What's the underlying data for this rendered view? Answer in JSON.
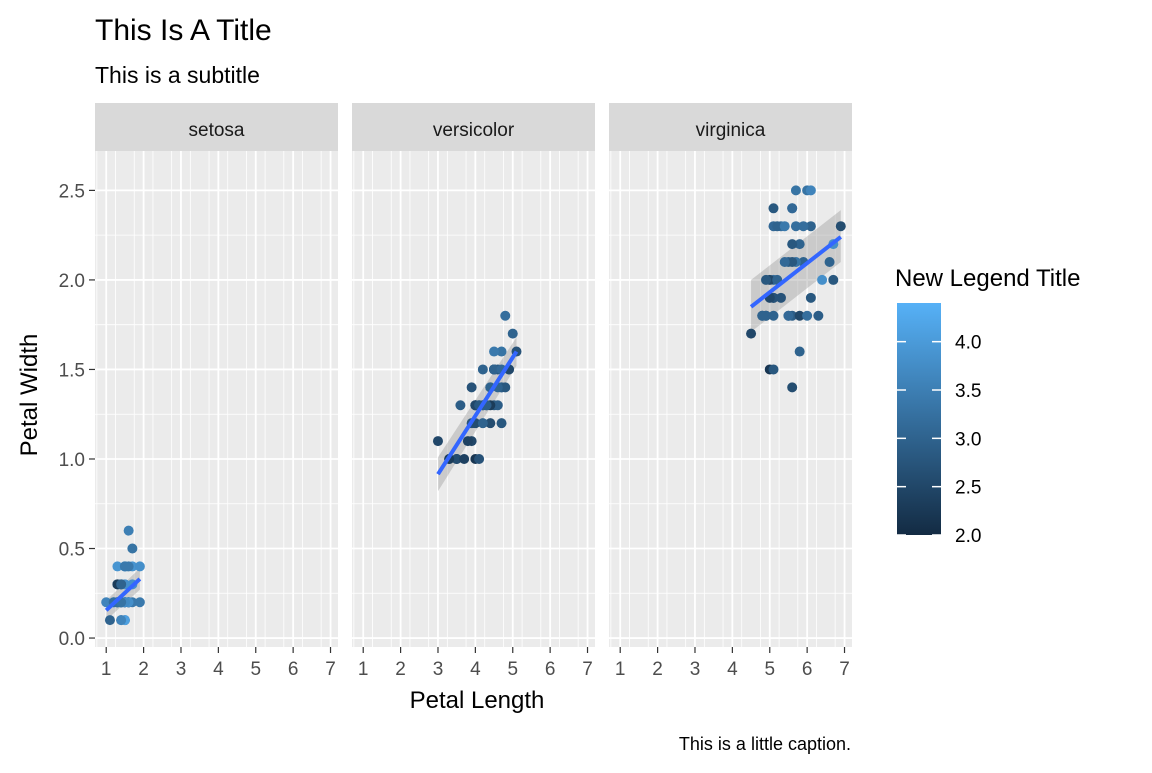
{
  "chart_data": {
    "type": "scatter",
    "title": "This Is A Title",
    "subtitle": "This is a subtitle",
    "caption": "This is a little caption.",
    "xlabel": "Petal Length",
    "ylabel": "Petal Width",
    "xlim": [
      0.7,
      7.2
    ],
    "ylim": [
      -0.05,
      2.72
    ],
    "x_ticks": [
      1,
      2,
      3,
      4,
      5,
      6,
      7
    ],
    "y_ticks": [
      0.0,
      0.5,
      1.0,
      1.5,
      2.0,
      2.5
    ],
    "y_tick_labels": [
      "0.0",
      "0.5",
      "1.0",
      "1.5",
      "2.0",
      "2.5"
    ],
    "grid": true,
    "legend": {
      "title": "New Legend Title",
      "placement": "right",
      "min": 2.0,
      "max": 4.4,
      "low_color": "#132B43",
      "high_color": "#56B1F7",
      "ticks": [
        2.0,
        2.5,
        3.0,
        3.5,
        4.0
      ],
      "tick_labels": [
        "2.0",
        "2.5",
        "3.0",
        "3.5",
        "4.0"
      ]
    },
    "smooth_color": "#3366FF",
    "panels": [
      {
        "name": "setosa",
        "fit": {
          "x": [
            1.0,
            1.9
          ],
          "y": [
            0.155,
            0.33
          ],
          "se_lo": [
            0.1,
            0.27
          ],
          "se_hi": [
            0.21,
            0.39
          ]
        },
        "points": [
          [
            1.4,
            0.2,
            3.5
          ],
          [
            1.4,
            0.2,
            3.0
          ],
          [
            1.3,
            0.2,
            3.2
          ],
          [
            1.5,
            0.2,
            3.1
          ],
          [
            1.4,
            0.2,
            3.6
          ],
          [
            1.7,
            0.4,
            3.9
          ],
          [
            1.4,
            0.3,
            3.4
          ],
          [
            1.5,
            0.2,
            3.4
          ],
          [
            1.4,
            0.2,
            2.9
          ],
          [
            1.5,
            0.1,
            3.1
          ],
          [
            1.5,
            0.2,
            3.7
          ],
          [
            1.6,
            0.2,
            3.4
          ],
          [
            1.4,
            0.1,
            3.0
          ],
          [
            1.1,
            0.1,
            3.0
          ],
          [
            1.2,
            0.2,
            4.0
          ],
          [
            1.5,
            0.4,
            4.4
          ],
          [
            1.3,
            0.4,
            3.9
          ],
          [
            1.4,
            0.3,
            3.5
          ],
          [
            1.7,
            0.3,
            3.8
          ],
          [
            1.5,
            0.3,
            3.8
          ],
          [
            1.7,
            0.2,
            3.4
          ],
          [
            1.5,
            0.4,
            3.7
          ],
          [
            1.0,
            0.2,
            3.6
          ],
          [
            1.7,
            0.5,
            3.3
          ],
          [
            1.9,
            0.2,
            3.4
          ],
          [
            1.6,
            0.2,
            3.0
          ],
          [
            1.6,
            0.4,
            3.4
          ],
          [
            1.5,
            0.2,
            3.5
          ],
          [
            1.4,
            0.2,
            3.4
          ],
          [
            1.6,
            0.2,
            3.2
          ],
          [
            1.6,
            0.2,
            3.1
          ],
          [
            1.5,
            0.4,
            3.4
          ],
          [
            1.5,
            0.1,
            4.1
          ],
          [
            1.4,
            0.2,
            4.2
          ],
          [
            1.5,
            0.2,
            3.1
          ],
          [
            1.2,
            0.2,
            3.2
          ],
          [
            1.3,
            0.2,
            3.5
          ],
          [
            1.4,
            0.1,
            3.6
          ],
          [
            1.3,
            0.2,
            3.0
          ],
          [
            1.5,
            0.2,
            3.4
          ],
          [
            1.3,
            0.3,
            3.5
          ],
          [
            1.3,
            0.3,
            2.3
          ],
          [
            1.3,
            0.2,
            3.2
          ],
          [
            1.6,
            0.6,
            3.5
          ],
          [
            1.9,
            0.4,
            3.8
          ],
          [
            1.4,
            0.3,
            3.0
          ],
          [
            1.6,
            0.2,
            3.8
          ],
          [
            1.4,
            0.2,
            3.2
          ],
          [
            1.5,
            0.2,
            3.7
          ],
          [
            1.4,
            0.2,
            3.3
          ]
        ]
      },
      {
        "name": "versicolor",
        "fit": {
          "x": [
            3.0,
            5.1
          ],
          "y": [
            0.915,
            1.6
          ],
          "se_lo": [
            0.82,
            1.52
          ],
          "se_hi": [
            1.01,
            1.68
          ]
        },
        "points": [
          [
            4.7,
            1.4,
            3.2
          ],
          [
            4.5,
            1.5,
            3.2
          ],
          [
            4.9,
            1.5,
            3.1
          ],
          [
            4.0,
            1.3,
            2.3
          ],
          [
            4.6,
            1.5,
            2.8
          ],
          [
            4.5,
            1.3,
            2.8
          ],
          [
            4.7,
            1.6,
            3.3
          ],
          [
            3.3,
            1.0,
            2.4
          ],
          [
            4.6,
            1.3,
            2.9
          ],
          [
            3.9,
            1.4,
            2.7
          ],
          [
            3.5,
            1.0,
            2.0
          ],
          [
            4.2,
            1.5,
            3.0
          ],
          [
            4.0,
            1.0,
            2.2
          ],
          [
            4.7,
            1.4,
            2.9
          ],
          [
            3.6,
            1.3,
            2.9
          ],
          [
            4.4,
            1.4,
            3.1
          ],
          [
            4.5,
            1.5,
            3.0
          ],
          [
            4.1,
            1.0,
            2.7
          ],
          [
            4.5,
            1.5,
            2.2
          ],
          [
            3.9,
            1.1,
            2.5
          ],
          [
            4.8,
            1.8,
            3.2
          ],
          [
            4.0,
            1.3,
            2.8
          ],
          [
            4.9,
            1.5,
            2.5
          ],
          [
            4.7,
            1.2,
            2.8
          ],
          [
            4.3,
            1.3,
            2.9
          ],
          [
            4.4,
            1.4,
            3.0
          ],
          [
            4.8,
            1.4,
            2.8
          ],
          [
            5.0,
            1.7,
            3.0
          ],
          [
            4.5,
            1.5,
            2.9
          ],
          [
            3.5,
            1.0,
            2.6
          ],
          [
            3.8,
            1.1,
            2.4
          ],
          [
            3.7,
            1.0,
            2.4
          ],
          [
            3.9,
            1.2,
            2.7
          ],
          [
            5.1,
            1.6,
            2.7
          ],
          [
            4.5,
            1.5,
            3.0
          ],
          [
            4.5,
            1.6,
            3.4
          ],
          [
            4.7,
            1.5,
            3.1
          ],
          [
            4.4,
            1.3,
            2.3
          ],
          [
            4.1,
            1.3,
            3.0
          ],
          [
            4.0,
            1.3,
            2.5
          ],
          [
            4.4,
            1.2,
            2.6
          ],
          [
            4.6,
            1.4,
            3.0
          ],
          [
            4.0,
            1.2,
            2.6
          ],
          [
            3.3,
            1.0,
            2.3
          ],
          [
            4.2,
            1.3,
            2.7
          ],
          [
            4.2,
            1.2,
            3.0
          ],
          [
            4.2,
            1.3,
            2.9
          ],
          [
            4.3,
            1.3,
            2.9
          ],
          [
            3.0,
            1.1,
            2.5
          ],
          [
            4.1,
            1.3,
            2.8
          ]
        ]
      },
      {
        "name": "virginica",
        "fit": {
          "x": [
            4.5,
            6.9
          ],
          "y": [
            1.85,
            2.24
          ],
          "se_lo": [
            1.71,
            2.1
          ],
          "se_hi": [
            2.0,
            2.39
          ]
        },
        "points": [
          [
            6.0,
            2.5,
            3.3
          ],
          [
            5.1,
            1.9,
            2.7
          ],
          [
            5.9,
            2.1,
            3.0
          ],
          [
            5.6,
            1.8,
            2.9
          ],
          [
            5.8,
            2.2,
            3.0
          ],
          [
            6.6,
            2.1,
            3.0
          ],
          [
            4.5,
            1.7,
            2.5
          ],
          [
            6.3,
            1.8,
            2.9
          ],
          [
            5.8,
            1.8,
            2.5
          ],
          [
            6.1,
            2.5,
            3.6
          ],
          [
            5.1,
            2.0,
            3.2
          ],
          [
            5.3,
            1.9,
            2.7
          ],
          [
            5.5,
            2.1,
            3.0
          ],
          [
            5.0,
            2.0,
            2.5
          ],
          [
            5.1,
            2.4,
            2.8
          ],
          [
            5.3,
            2.3,
            3.2
          ],
          [
            5.5,
            1.8,
            3.0
          ],
          [
            6.7,
            2.2,
            3.8
          ],
          [
            6.9,
            2.3,
            2.6
          ],
          [
            5.0,
            1.5,
            2.2
          ],
          [
            5.7,
            2.3,
            3.2
          ],
          [
            4.9,
            2.0,
            2.8
          ],
          [
            6.7,
            2.0,
            2.8
          ],
          [
            4.9,
            1.8,
            2.7
          ],
          [
            5.7,
            2.1,
            3.3
          ],
          [
            6.0,
            1.8,
            3.2
          ],
          [
            4.8,
            1.8,
            2.8
          ],
          [
            4.9,
            1.8,
            3.0
          ],
          [
            5.6,
            2.1,
            2.8
          ],
          [
            5.8,
            1.6,
            3.0
          ],
          [
            6.1,
            1.9,
            2.8
          ],
          [
            6.4,
            2.0,
            3.8
          ],
          [
            5.6,
            2.2,
            2.8
          ],
          [
            5.1,
            1.5,
            2.8
          ],
          [
            5.6,
            1.4,
            2.6
          ],
          [
            6.1,
            2.3,
            3.0
          ],
          [
            5.6,
            2.4,
            3.4
          ],
          [
            5.5,
            1.8,
            3.1
          ],
          [
            4.8,
            1.8,
            3.0
          ],
          [
            5.4,
            2.1,
            3.1
          ],
          [
            5.6,
            2.4,
            3.1
          ],
          [
            5.1,
            2.3,
            3.1
          ],
          [
            5.1,
            1.9,
            2.7
          ],
          [
            5.9,
            2.3,
            3.2
          ],
          [
            5.7,
            2.5,
            3.3
          ],
          [
            5.2,
            2.3,
            3.0
          ],
          [
            5.0,
            1.9,
            2.5
          ],
          [
            5.2,
            2.0,
            3.0
          ],
          [
            5.4,
            2.3,
            3.4
          ],
          [
            5.1,
            1.8,
            3.0
          ]
        ]
      }
    ]
  }
}
